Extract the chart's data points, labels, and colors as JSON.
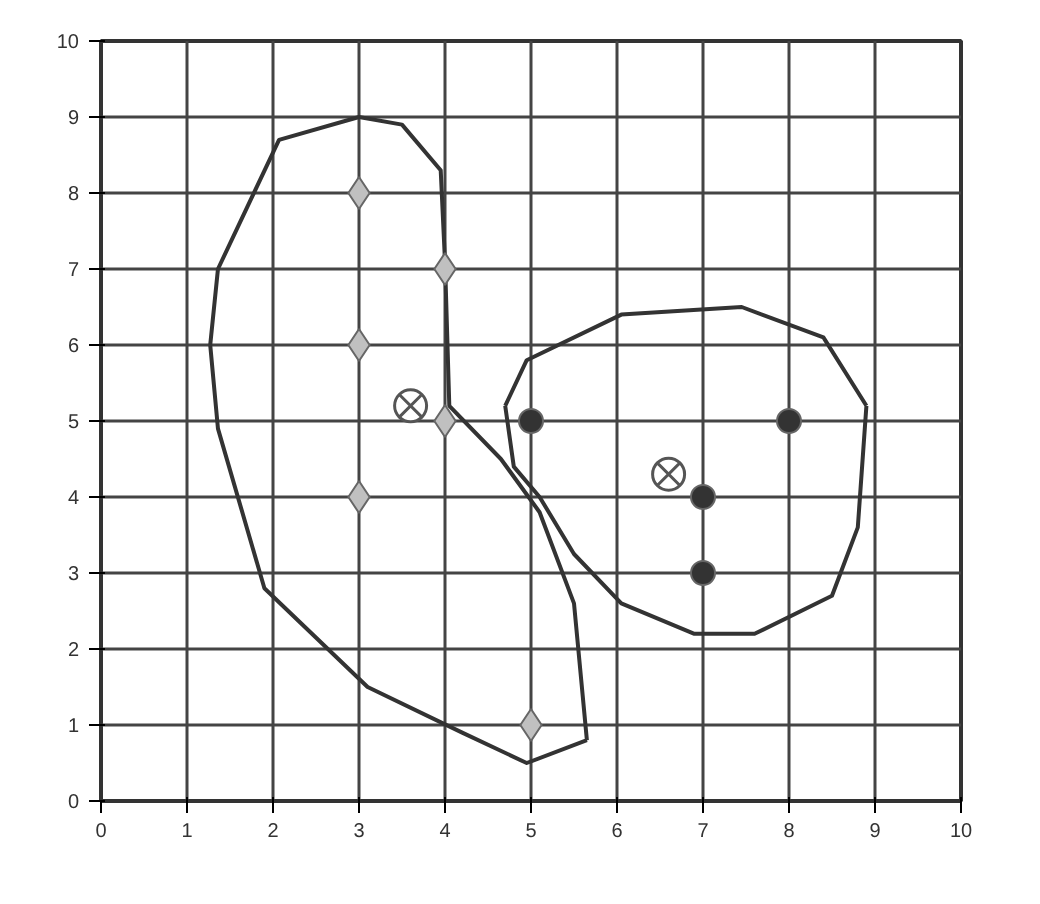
{
  "chart_data": {
    "type": "scatter",
    "xlim": [
      0,
      10
    ],
    "ylim": [
      0,
      10
    ],
    "xticks": [
      0,
      1,
      2,
      3,
      4,
      5,
      6,
      7,
      8,
      9,
      10
    ],
    "yticks": [
      0,
      1,
      2,
      3,
      4,
      5,
      6,
      7,
      8,
      9,
      10
    ],
    "grid": true,
    "series": [
      {
        "type": "line",
        "marker": "none",
        "color": "#333333",
        "x": [
          1.27,
          1.36,
          2.07,
          3.0,
          3.5,
          3.95,
          4.0,
          4.05,
          4.65,
          5.1,
          5.5,
          5.65,
          null,
          1.27,
          1.36,
          1.9,
          3.1,
          4.2,
          4.95,
          5.65
        ],
        "values": [
          6.0,
          7.0,
          8.7,
          9.0,
          8.9,
          8.3,
          7.1,
          5.2,
          4.5,
          3.8,
          2.6,
          0.8,
          null,
          6.0,
          4.9,
          2.8,
          1.5,
          0.9,
          0.5,
          0.8
        ]
      },
      {
        "type": "line",
        "marker": "none",
        "color": "#333333",
        "x": [
          4.7,
          4.95,
          6.05,
          7.45,
          8.4,
          8.9,
          null,
          4.7,
          4.8,
          5.1,
          5.5,
          6.05,
          6.9,
          7.6,
          8.5,
          8.8,
          8.9
        ],
        "values": [
          5.2,
          5.8,
          6.4,
          6.5,
          6.1,
          5.2,
          null,
          5.2,
          4.4,
          4.0,
          3.25,
          2.6,
          2.2,
          2.2,
          2.7,
          3.6,
          5.2
        ]
      },
      {
        "marker": "diamond",
        "color": "#c0c0c0",
        "x": [
          3,
          4,
          3,
          4,
          3,
          5
        ],
        "values": [
          8,
          7,
          6,
          5,
          4,
          1
        ]
      },
      {
        "marker": "circle",
        "color": "#333333",
        "x": [
          5,
          7,
          8,
          7
        ],
        "values": [
          5,
          4,
          5,
          3
        ]
      },
      {
        "marker": "cross",
        "color": "#555555",
        "x": [
          3.6,
          6.6
        ],
        "values": [
          5.2,
          4.3
        ]
      }
    ]
  }
}
